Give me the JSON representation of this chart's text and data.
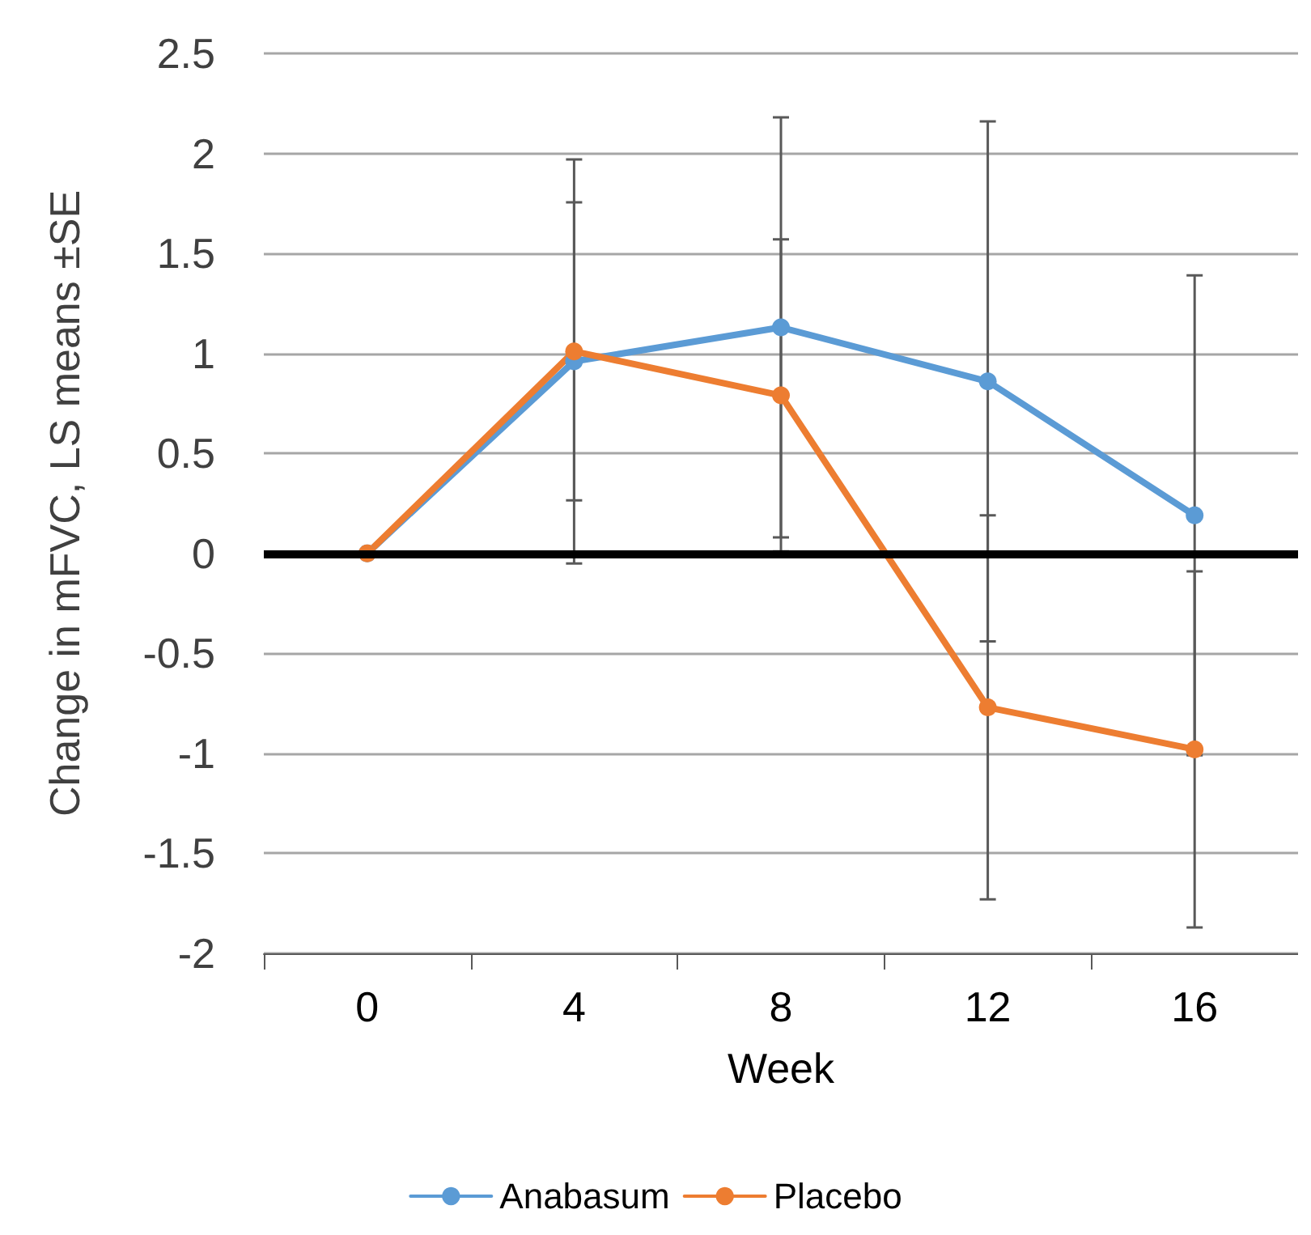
{
  "chart_data": {
    "type": "line",
    "xlabel": "Week",
    "ylabel": "Change in mFVC, LS means ±SE",
    "categories": [
      "0",
      "4",
      "8",
      "12",
      "16"
    ],
    "series": [
      {
        "name": "Anabasum",
        "color": "#5b9bd5",
        "values": [
          0,
          0.96,
          1.13,
          0.86,
          0.19
        ],
        "errors": [
          null,
          1.01,
          1.05,
          1.3,
          1.2
        ]
      },
      {
        "name": "Placebo",
        "color": "#ed7d31",
        "values": [
          0,
          1.01,
          0.79,
          -0.77,
          -0.98
        ],
        "errors": [
          null,
          0.745,
          0.78,
          0.96,
          0.89
        ]
      }
    ],
    "ylim": [
      -2,
      2.5
    ],
    "yticks": [
      -2,
      -1.5,
      -1,
      -0.5,
      0,
      0.5,
      1,
      1.5,
      2,
      2.5
    ],
    "grid": "y",
    "legend": "bottom",
    "marker": "circle",
    "line_style": "solid",
    "ref_lines": [
      {
        "axis": "y",
        "value": 0,
        "color": "#000000"
      }
    ]
  }
}
